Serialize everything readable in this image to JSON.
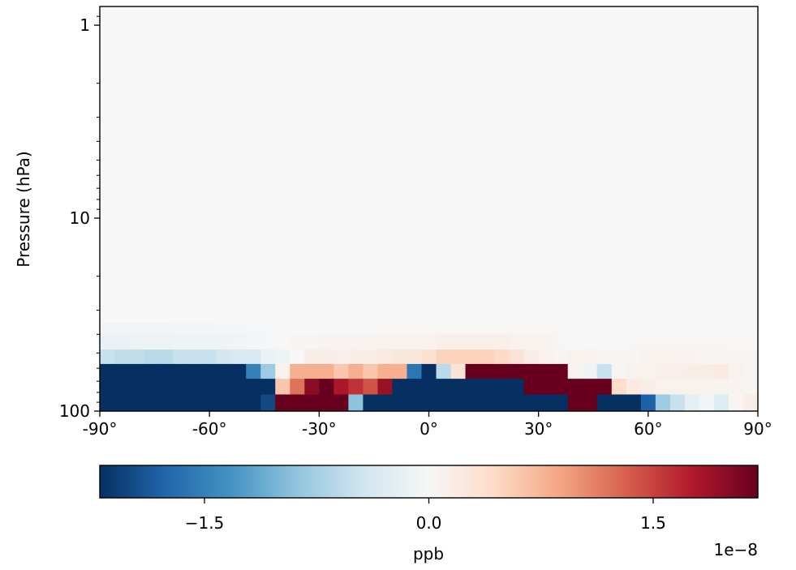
{
  "chart_data": {
    "type": "heatmap",
    "title": "",
    "xlabel": "",
    "ylabel": "Pressure (hPa)",
    "x_range": [
      -90,
      90
    ],
    "x_ticks": [
      -90,
      -60,
      -30,
      0,
      30,
      60,
      90
    ],
    "x_tick_labels": [
      "-90°",
      "-60°",
      "-30°",
      "0°",
      "30°",
      "60°",
      "90°"
    ],
    "y_scale": "log",
    "y_inverted": true,
    "y_range": [
      100,
      0.8
    ],
    "y_ticks": [
      1,
      10,
      100
    ],
    "y_tick_labels": [
      "1",
      "10",
      "100"
    ],
    "cell_width_deg": 4,
    "colormap": "RdBu_r",
    "colormap_colors": [
      "#053061",
      "#2166ac",
      "#4393c3",
      "#92c5de",
      "#d1e5f0",
      "#f7f7f7",
      "#fddbc7",
      "#f4a582",
      "#d6604d",
      "#b2182b",
      "#67001f"
    ],
    "vmin": -2.2,
    "vmax": 2.2,
    "background_value": 0.0,
    "rows": [
      {
        "p_top": 35,
        "p_bottom": 40,
        "values": [
          -0.08,
          -0.08,
          -0.08,
          -0.08,
          -0.08,
          -0.06,
          -0.06,
          -0.06,
          -0.05,
          -0.04,
          -0.03,
          -0.02,
          -0.01,
          0,
          0,
          0,
          0,
          0,
          0,
          0.02,
          0.02,
          0.02,
          0.02,
          0.02,
          0.02,
          0.02,
          0.02,
          0.02,
          0.02,
          0.02,
          0.02,
          0.02,
          0.01,
          0,
          0,
          0,
          0,
          0,
          0,
          0,
          0,
          0,
          0,
          0,
          0
        ]
      },
      {
        "p_top": 40,
        "p_bottom": 48,
        "values": [
          -0.15,
          -0.15,
          -0.12,
          -0.12,
          -0.12,
          -0.1,
          -0.1,
          -0.1,
          -0.09,
          -0.07,
          -0.05,
          -0.02,
          0,
          0.05,
          0.05,
          0.06,
          0.06,
          0.06,
          0.08,
          0.08,
          0.08,
          0.08,
          0.1,
          0.12,
          0.12,
          0.12,
          0.12,
          0.12,
          0.1,
          0.1,
          0.06,
          0.02,
          0,
          0,
          0,
          0,
          0.02,
          0.02,
          0.02,
          0.02,
          0.02,
          0.02,
          0.02,
          0.02,
          0.02
        ]
      },
      {
        "p_top": 48,
        "p_bottom": 57,
        "values": [
          -0.5,
          -0.55,
          -0.55,
          -0.6,
          -0.6,
          -0.5,
          -0.5,
          -0.5,
          -0.4,
          -0.35,
          -0.35,
          -0.15,
          -0.1,
          0,
          0.15,
          0.15,
          0.12,
          0.15,
          0.15,
          0.2,
          0.25,
          0.25,
          0.35,
          0.5,
          0.5,
          0.5,
          0.5,
          0.45,
          0.3,
          0.15,
          0.1,
          0.05,
          0.08,
          0.1,
          0.05,
          0.05,
          0.05,
          0.08,
          0.08,
          0.08,
          0.06,
          0.04,
          0.04,
          0.03,
          0.03
        ]
      },
      {
        "p_top": 57,
        "p_bottom": 68,
        "values": [
          -2.2,
          -2.2,
          -2.2,
          -2.2,
          -2.2,
          -2.2,
          -2.2,
          -2.2,
          -2.2,
          -2.2,
          -1.5,
          -0.8,
          0.1,
          0.8,
          0.8,
          0.8,
          0.6,
          0.8,
          0.6,
          0.8,
          0.8,
          -1.6,
          -2.2,
          -0.6,
          0.3,
          2.2,
          2.2,
          2.2,
          2.2,
          2.2,
          2.2,
          2.2,
          0.08,
          -0.1,
          -0.5,
          0.05,
          0.08,
          0.08,
          0.12,
          0.12,
          0.15,
          0.15,
          0.2,
          0.1,
          0.05
        ]
      },
      {
        "p_top": 68,
        "p_bottom": 82,
        "values": [
          -2.2,
          -2.2,
          -2.2,
          -2.2,
          -2.2,
          -2.2,
          -2.2,
          -2.2,
          -2.2,
          -2.2,
          -2.2,
          -2.2,
          0.6,
          1.2,
          2.0,
          2.2,
          1.8,
          1.6,
          1.4,
          1.9,
          -2.2,
          -2.2,
          -2.2,
          -2.2,
          -2.2,
          -2.2,
          -2.2,
          -2.2,
          -2.2,
          2.2,
          2.2,
          2.2,
          2.2,
          2.2,
          2.2,
          0.4,
          0.2,
          0.15,
          0.1,
          0.1,
          0.1,
          0.1,
          0.08,
          0.06,
          0.05
        ]
      },
      {
        "p_top": 82,
        "p_bottom": 100,
        "values": [
          -2.2,
          -2.2,
          -2.2,
          -2.2,
          -2.2,
          -2.2,
          -2.2,
          -2.2,
          -2.2,
          -2.2,
          -2.2,
          -2.0,
          2.2,
          2.2,
          2.2,
          2.2,
          2.2,
          -0.9,
          -2.2,
          -2.2,
          -2.2,
          -2.2,
          -2.2,
          -2.2,
          -2.2,
          -2.2,
          -2.2,
          -2.2,
          -2.2,
          -2.2,
          -2.2,
          -2.2,
          2.2,
          2.2,
          -2.2,
          -2.2,
          -2.2,
          -1.8,
          -0.8,
          -0.5,
          -0.2,
          -0.08,
          -0.3,
          0.05,
          0.15
        ]
      }
    ],
    "colorbar": {
      "label": "ppb",
      "ticks": [
        -1.5,
        0.0,
        1.5
      ],
      "tick_labels": [
        "−1.5",
        "0.0",
        "1.5"
      ],
      "offset_text": "1e−8"
    }
  }
}
